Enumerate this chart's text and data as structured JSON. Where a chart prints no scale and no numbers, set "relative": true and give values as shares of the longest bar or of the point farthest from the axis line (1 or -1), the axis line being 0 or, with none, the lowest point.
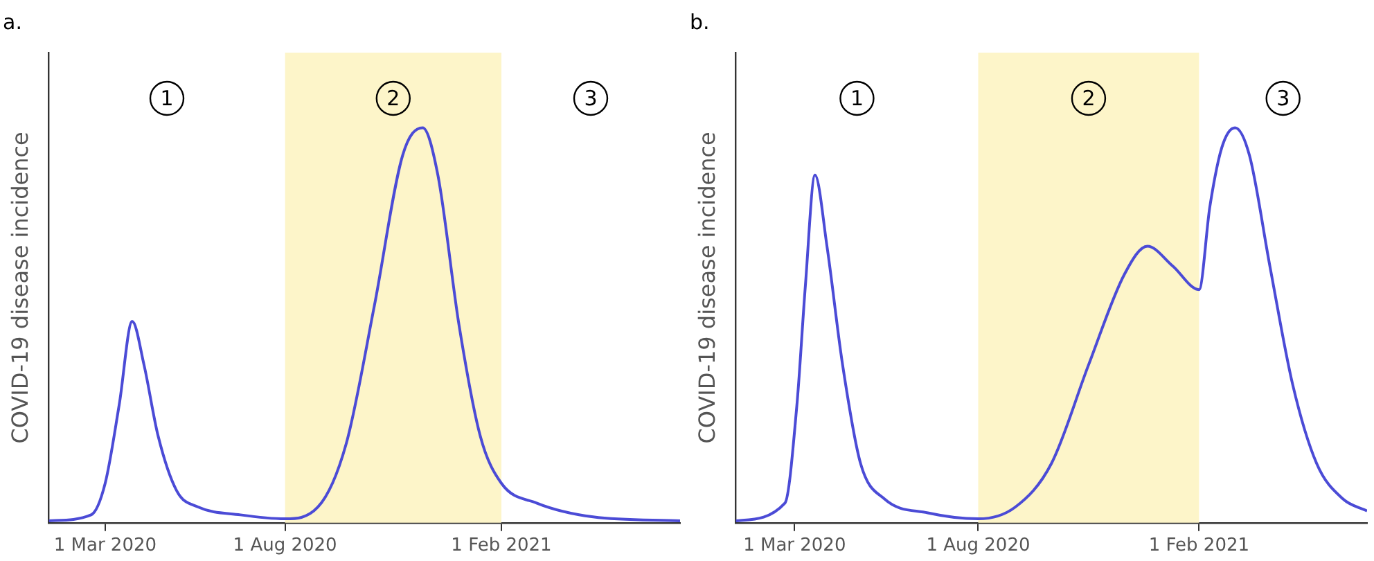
{
  "chart_data": [
    {
      "type": "line",
      "title": "a.",
      "ylabel": "COVID-19 disease incidence",
      "relative": true,
      "tick_labels": "x",
      "grid": false,
      "legend": false,
      "marker": "none",
      "line_style": "solid",
      "xlim": [
        "2020-01-13",
        "2021-07-03"
      ],
      "xticks": [
        {
          "value": "2020-03-01",
          "label": "1 Mar 2020"
        },
        {
          "value": "2020-08-01",
          "label": "1 Aug 2020"
        },
        {
          "value": "2021-02-01",
          "label": "1 Feb 2021"
        }
      ],
      "x": [
        "2020-01-13",
        "2020-02-18",
        "2020-03-01",
        "2020-03-13",
        "2020-03-24",
        "2020-04-03",
        "2020-04-15",
        "2020-05-01",
        "2020-05-19",
        "2020-06-24",
        "2020-08-01",
        "2020-08-29",
        "2020-09-22",
        "2020-10-16",
        "2020-11-09",
        "2020-11-26",
        "2020-12-09",
        "2020-12-27",
        "2021-01-14",
        "2021-02-01",
        "2021-03-03",
        "2021-04-20",
        "2021-07-03"
      ],
      "series": [
        {
          "color": "#4b4bd6",
          "values": [
            0.005,
            0.02,
            0.1,
            0.3,
            0.51,
            0.4,
            0.22,
            0.08,
            0.04,
            0.02,
            0.01,
            0.04,
            0.2,
            0.55,
            0.93,
            1.0,
            0.88,
            0.5,
            0.22,
            0.1,
            0.05,
            0.015,
            0.005
          ]
        }
      ],
      "bands": [
        {
          "axis": "x",
          "from": "2020-08-01",
          "to": "2021-02-01",
          "color": "#fdf5c9"
        }
      ],
      "annotations": [
        "1",
        "2",
        "3"
      ]
    },
    {
      "type": "line",
      "title": "b.",
      "ylabel": "COVID-19 disease incidence",
      "relative": true,
      "tick_labels": "x",
      "grid": false,
      "legend": false,
      "marker": "none",
      "line_style": "solid",
      "xlim": [
        "2020-01-12",
        "2021-06-21"
      ],
      "xticks": [
        {
          "value": "2020-03-01",
          "label": "1 Mar 2020"
        },
        {
          "value": "2020-08-01",
          "label": "1 Aug 2020"
        },
        {
          "value": "2021-02-01",
          "label": "1 Feb 2021"
        }
      ],
      "x": [
        "2020-01-12",
        "2020-02-22",
        "2020-03-03",
        "2020-03-10",
        "2020-03-18",
        "2020-03-28",
        "2020-04-10",
        "2020-04-25",
        "2020-05-15",
        "2020-06-20",
        "2020-08-01",
        "2020-09-01",
        "2020-10-01",
        "2020-11-01",
        "2020-12-01",
        "2020-12-20",
        "2021-01-10",
        "2021-02-01",
        "2021-02-10",
        "2021-02-20",
        "2021-03-03",
        "2021-03-15",
        "2021-04-01",
        "2021-04-20",
        "2021-05-10",
        "2021-06-01",
        "2021-06-21"
      ],
      "series": [
        {
          "color": "#4b4bd6",
          "values": [
            0.005,
            0.05,
            0.3,
            0.6,
            0.88,
            0.7,
            0.4,
            0.15,
            0.06,
            0.025,
            0.01,
            0.04,
            0.15,
            0.4,
            0.63,
            0.7,
            0.65,
            0.59,
            0.8,
            0.95,
            1.0,
            0.93,
            0.65,
            0.35,
            0.15,
            0.06,
            0.03
          ]
        }
      ],
      "bands": [
        {
          "axis": "x",
          "from": "2020-08-01",
          "to": "2021-02-01",
          "color": "#fdf5c9"
        }
      ],
      "annotations": [
        "1",
        "2",
        "3"
      ]
    }
  ]
}
